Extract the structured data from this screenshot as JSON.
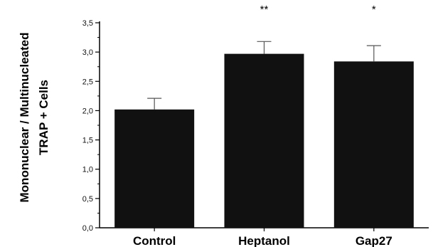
{
  "chart_data": {
    "type": "bar",
    "categories": [
      "Control",
      "Heptanol",
      "Gap27"
    ],
    "values": [
      2.02,
      2.97,
      2.84
    ],
    "errors": [
      0.19,
      0.21,
      0.27
    ],
    "significance": [
      "",
      "**",
      "*"
    ],
    "ylabel_lines": [
      "Mononuclear / Multinucleated",
      "TRAP + Cells"
    ],
    "ylim": [
      0,
      3.5
    ],
    "yticks": [
      "0,0",
      "0,5",
      "1,0",
      "1,5",
      "2,0",
      "2,5",
      "3,0",
      "3,5"
    ],
    "grid": false,
    "bar_color": "#111111"
  }
}
